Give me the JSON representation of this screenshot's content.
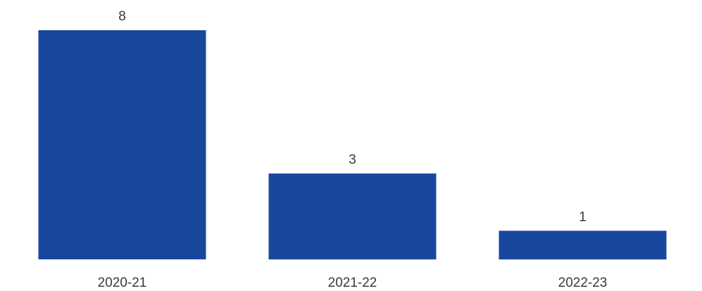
{
  "chart_data": {
    "type": "bar",
    "categories": [
      "2020-21",
      "2021-22",
      "2022-23"
    ],
    "values": [
      8,
      3,
      1
    ],
    "title": "",
    "xlabel": "",
    "ylabel": "",
    "ylim": [
      0,
      8
    ],
    "grid": false,
    "data_labels": true,
    "colors": {
      "bar": "#19479E"
    }
  }
}
